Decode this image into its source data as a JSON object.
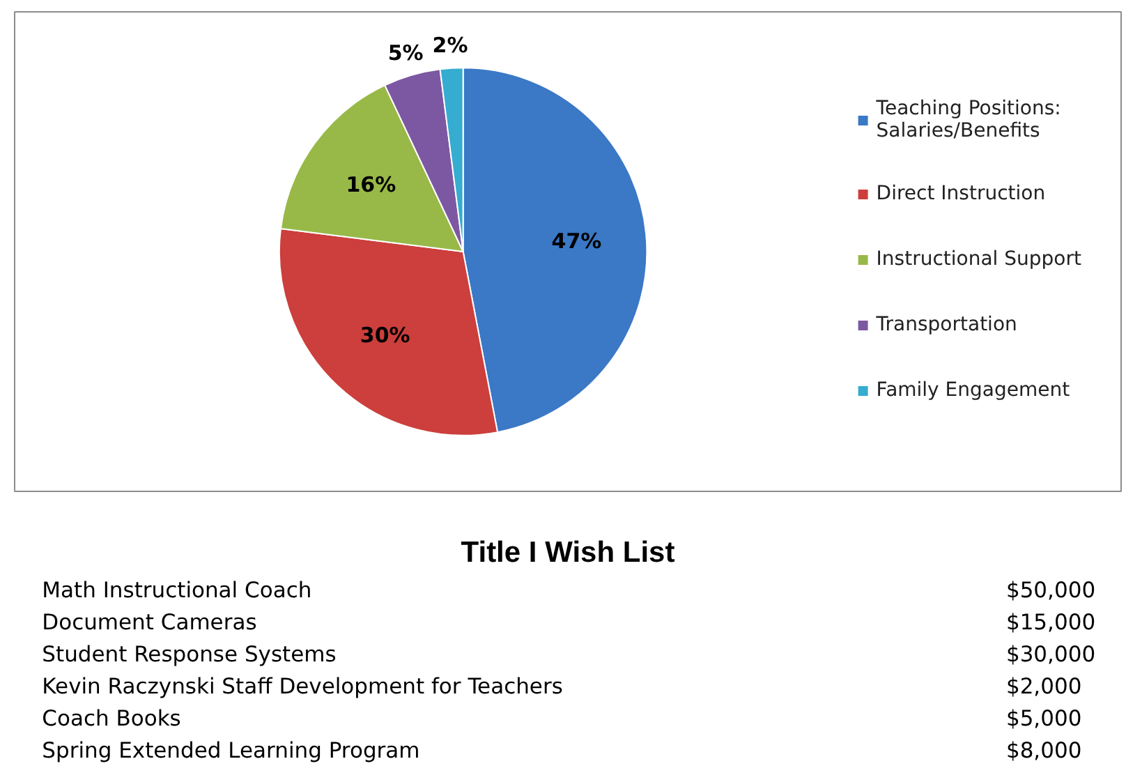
{
  "chart_data": [
    {
      "type": "pie",
      "categories": [
        "Teaching Positions: Salaries/Benefits",
        "Direct Instruction",
        "Instructional Support",
        "Transportation",
        "Family Engagement"
      ],
      "values": [
        47,
        30,
        16,
        5,
        2
      ],
      "colors": [
        "#3b78c6",
        "#cc3f3c",
        "#98b948",
        "#7d58a2",
        "#35acd0"
      ],
      "value_labels": [
        "47%",
        "30%",
        "16%",
        "5%",
        "2%"
      ],
      "legend": "right"
    },
    {
      "type": "other",
      "title": "Title I Wish List",
      "annotations": [
        "Math Instructional Coach",
        "$50,000",
        "Document Cameras",
        "$15,000",
        "Student Response Systems",
        "$30,000",
        "Kevin Raczynski Staff Development for Teachers",
        "$2,000",
        "Coach Books",
        "$5,000",
        "Spring Extended Learning Program",
        "$8,000"
      ]
    }
  ]
}
